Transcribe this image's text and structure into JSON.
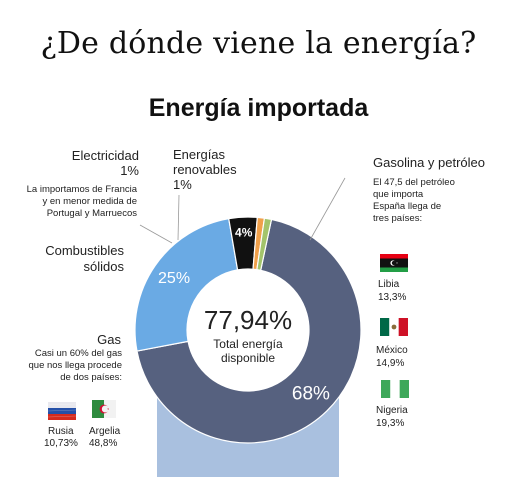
{
  "header": {
    "title": "¿De dónde viene la energía?",
    "subtitle": "Energía importada"
  },
  "center": {
    "value": "77,94%",
    "label_line1": "Total energía",
    "label_line2": "disponible"
  },
  "callouts": {
    "electricidad": {
      "name": "Electricidad",
      "pct": "1%",
      "note_line1": "La importamos de Francia",
      "note_line2": "y en menor medida de",
      "note_line3": "Portugal y Marruecos"
    },
    "renovables": {
      "name_line1": "Energías",
      "name_line2": "renovables",
      "pct": "1%"
    },
    "combustibles": {
      "name_line1": "Combustibles",
      "name_line2": "sólidos"
    },
    "gasolina": {
      "name": "Gasolina y petróleo",
      "note_line1": "El 47,5 del petróleo",
      "note_line2": "que importa",
      "note_line3": "España llega de",
      "note_line4": "tres países:"
    },
    "gas": {
      "name": "Gas",
      "note_line1": "Casi un 60% del gas",
      "note_line2": "que nos llega procede",
      "note_line3": "de dos países:"
    }
  },
  "countries": {
    "libia": {
      "name": "Libia",
      "pct": "13,3%"
    },
    "mexico": {
      "name": "México",
      "pct": "14,9%"
    },
    "nigeria": {
      "name": "Nigeria",
      "pct": "19,3%"
    },
    "rusia": {
      "name": "Rusia",
      "pct": "10,73%"
    },
    "argelia": {
      "name": "Argelia",
      "pct": "48,8%"
    }
  },
  "colors": {
    "petroleo": "#56617f",
    "gas": "#6aaae4",
    "combustibles": "#111111",
    "electricidad": "#f0a04a",
    "renovables": "#a3c46b",
    "bar": "#a9c0df"
  },
  "chart_data": {
    "type": "pie",
    "title": "Energía importada",
    "total": 77.94,
    "slices": [
      {
        "name": "Gasolina y petróleo",
        "value": 68,
        "label": "68%"
      },
      {
        "name": "Gas",
        "value": 25,
        "label": "25%"
      },
      {
        "name": "Combustibles sólidos",
        "value": 4,
        "label": "4%"
      },
      {
        "name": "Electricidad",
        "value": 1,
        "label": ""
      },
      {
        "name": "Energías renovables",
        "value": 1,
        "label": ""
      }
    ]
  }
}
